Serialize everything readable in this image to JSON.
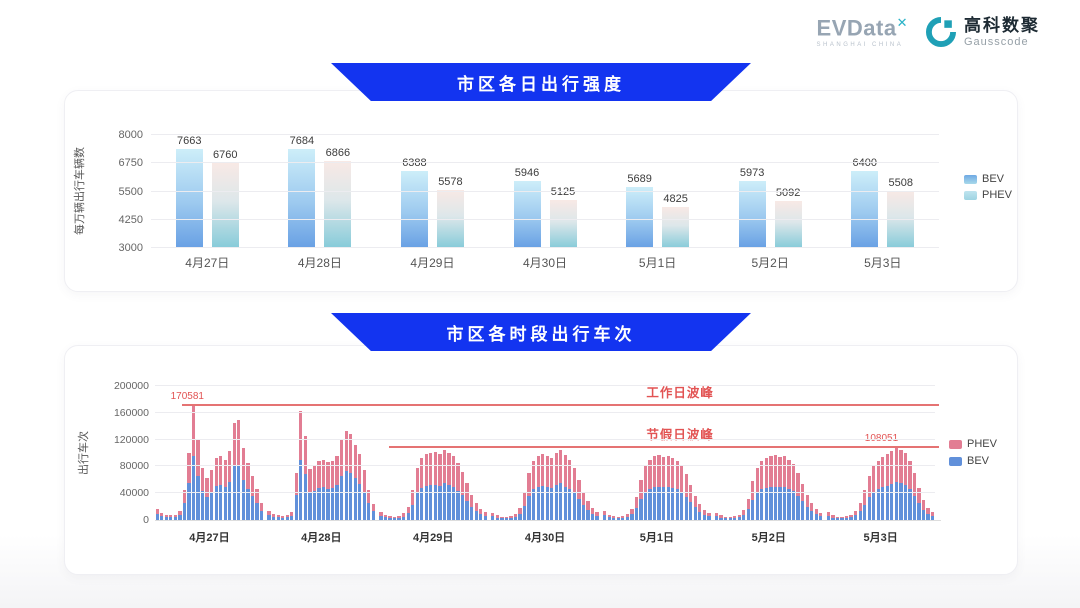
{
  "header": {
    "evdata_logo": {
      "text": "EVData",
      "sup": "✕",
      "subtext": "SHANGHAI CHINA"
    },
    "gausscode_logo": {
      "cn": "高科数聚",
      "en": "Gausscode"
    }
  },
  "colors": {
    "banner_blue": "#1334f0",
    "annotation_red": "#e25353",
    "bev_bar2": "#6190da",
    "phev_bar2": "#e27d93",
    "bev_bar1_gradient": [
      "#cdeef9",
      "#68a0e4"
    ],
    "phev_bar1_gradient": [
      "#f8e9e5",
      "#86cbd9"
    ]
  },
  "chart_data": [
    {
      "type": "bar",
      "title": "市区各日出行强度",
      "ylabel": "每万辆出行车辆数",
      "ylim": [
        3000,
        8000
      ],
      "yticks": [
        8000,
        6750,
        5500,
        4250,
        3000
      ],
      "grid": true,
      "legend_position": "right",
      "categories": [
        "4月27日",
        "4月28日",
        "4月29日",
        "4月30日",
        "5月1日",
        "5月2日",
        "5月3日"
      ],
      "series": [
        {
          "name": "BEV",
          "values": [
            7663,
            7684,
            6388,
            5946,
            5689,
            5973,
            6400
          ]
        },
        {
          "name": "PHEV",
          "values": [
            6760,
            6866,
            5578,
            5125,
            4825,
            5092,
            5508
          ]
        }
      ]
    },
    {
      "type": "bar",
      "subtype": "stacked-hourly",
      "title": "市区各时段出行车次",
      "ylabel": "出行车次",
      "ylim": [
        0,
        200000
      ],
      "yticks": [
        200000,
        160000,
        120000,
        80000,
        40000,
        0
      ],
      "grid": true,
      "legend_position": "right",
      "legend_order": [
        "PHEV",
        "BEV"
      ],
      "categories": [
        "4月27日",
        "4月28日",
        "4月29日",
        "4月30日",
        "5月1日",
        "5月2日",
        "5月3日"
      ],
      "annotations": [
        {
          "label": "工作日波峰",
          "value": 170581,
          "value_label": "170581",
          "line_start_pct": 3.5,
          "title_left_pct": 63,
          "value_left_pct": 2
        },
        {
          "label": "节假日波峰",
          "value": 108051,
          "value_label": "108051",
          "line_start_pct": 30,
          "title_left_pct": 63,
          "value_left_pct": 91
        }
      ],
      "series": [
        {
          "name": "BEV",
          "per_day_values": [
            [
              9000,
              5500,
              4400,
              3900,
              4400,
              7200,
              25000,
              55000,
              95000,
              66000,
              43000,
              34000,
              41000,
              51000,
              52000,
              49000,
              57000,
              80000,
              82000,
              59000,
              47000,
              36000,
              25000,
              14000
            ],
            [
              7700,
              5000,
              3900,
              3300,
              4400,
              6600,
              38000,
              90000,
              69000,
              42000,
              44000,
              48000,
              50000,
              47000,
              48000,
              53000,
              66000,
              73000,
              70000,
              62000,
              54000,
              41000,
              25000,
              13000
            ],
            [
              6200,
              4200,
              3100,
              2600,
              3100,
              5200,
              10400,
              23000,
              41000,
              48000,
              51000,
              52000,
              53000,
              51000,
              55000,
              52000,
              49000,
              44000,
              37000,
              29000,
              20000,
              13000,
              8300,
              6200
            ],
            [
              5700,
              3600,
              2600,
              2600,
              3100,
              4700,
              9400,
              21000,
              36000,
              46000,
              49000,
              51000,
              50000,
              48000,
              52000,
              55000,
              50000,
              47000,
              41000,
              31000,
              22000,
              15000,
              9400,
              6200
            ],
            [
              6800,
              4200,
              3100,
              2600,
              3100,
              4700,
              8300,
              18000,
              31000,
              42000,
              47000,
              49000,
              50000,
              49000,
              50000,
              48000,
              46000,
              42000,
              35000,
              27000,
              19000,
              12500,
              7800,
              5700
            ],
            [
              5700,
              3600,
              2600,
              2600,
              3100,
              4200,
              7800,
              17000,
              30000,
              41000,
              46000,
              48000,
              49000,
              50000,
              49000,
              50000,
              47000,
              44000,
              36000,
              28000,
              20000,
              13000,
              8300,
              5700
            ],
            [
              6200,
              3600,
              2600,
              2600,
              3100,
              4200,
              7300,
              13500,
              23000,
              34000,
              42000,
              46000,
              49000,
              51000,
              54000,
              56000,
              55000,
              52000,
              46000,
              36000,
              25000,
              15600,
              9400,
              6200
            ]
          ]
        },
        {
          "name": "PHEV",
          "per_day_values": [
            [
              7000,
              4500,
              3600,
              3100,
              3600,
              5800,
              20000,
              45000,
              75581,
              54000,
              35000,
              28000,
              34000,
              42000,
              43000,
              40000,
              46000,
              65000,
              67000,
              48000,
              38000,
              29000,
              21000,
              12000
            ],
            [
              6300,
              4000,
              3100,
              2700,
              3600,
              5400,
              32000,
              73000,
              56000,
              34000,
              36000,
              40000,
              40000,
              39000,
              40000,
              43000,
              54000,
              60000,
              58000,
              50000,
              44000,
              34000,
              20000,
              11000
            ],
            [
              5800,
              3800,
              2900,
              2400,
              2900,
              4800,
              9600,
              22000,
              37000,
              44000,
              47000,
              48000,
              49000,
              48000,
              50000,
              48000,
              46000,
              41000,
              35000,
              26000,
              18000,
              12000,
              7700,
              5800
            ],
            [
              5300,
              3400,
              2400,
              2400,
              2900,
              4300,
              8600,
              19000,
              34000,
              42000,
              46000,
              47000,
              46000,
              44000,
              48000,
              50000,
              47000,
              43000,
              37000,
              29000,
              20000,
              13000,
              8600,
              5800
            ],
            [
              6200,
              3800,
              2900,
              2400,
              2900,
              4300,
              7700,
              17000,
              29000,
              38000,
              43000,
              46000,
              47000,
              45000,
              46000,
              44000,
              42000,
              38000,
              33000,
              25000,
              17000,
              11500,
              7200,
              5300
            ],
            [
              5300,
              3400,
              2400,
              2400,
              2900,
              3800,
              7200,
              15000,
              28000,
              37000,
              42000,
              44000,
              46000,
              47000,
              45000,
              46000,
              43000,
              40000,
              34000,
              26000,
              18000,
              12000,
              7700,
              5300
            ],
            [
              5800,
              3400,
              2400,
              2400,
              2900,
              3800,
              6700,
              12500,
              22000,
              31000,
              38000,
              42000,
              45000,
              48000,
              49000,
              52051,
              50000,
              48000,
              42000,
              34000,
              23000,
              14400,
              8600,
              5800
            ]
          ]
        }
      ]
    }
  ]
}
